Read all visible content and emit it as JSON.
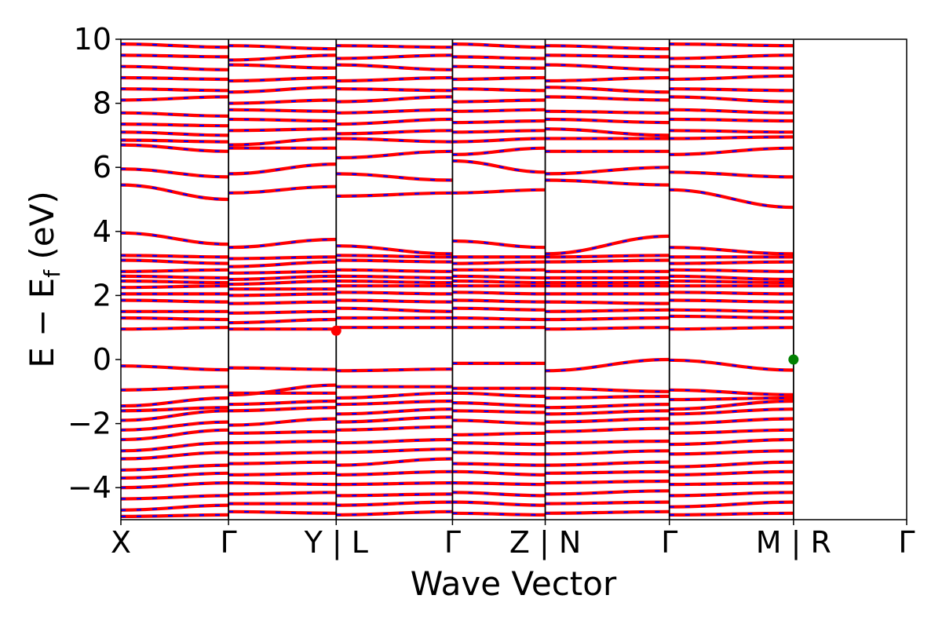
{
  "chart_data": {
    "type": "line",
    "xlabel": "Wave Vector",
    "ylabel": "E − E_f (eV)",
    "ylabel_parts": {
      "main": "E  −  E",
      "sub": "f",
      "unit": " (eV)"
    },
    "ylim": [
      -5,
      10
    ],
    "yticks": [
      -4,
      -2,
      0,
      2,
      4,
      6,
      8,
      10
    ],
    "ytick_labels": [
      "−4",
      "−2",
      "0",
      "2",
      "4",
      "6",
      "8",
      "10"
    ],
    "segments": [
      {
        "from": "X",
        "to": "Γ",
        "k_start": 0.0,
        "k_end": 0.137
      },
      {
        "from": "Γ",
        "to": "Y",
        "k_start": 0.137,
        "k_end": 0.274
      },
      {
        "from": "L",
        "to": "Γ",
        "k_start": 0.274,
        "k_end": 0.422
      },
      {
        "from": "Γ",
        "to": "Z",
        "k_start": 0.422,
        "k_end": 0.54
      },
      {
        "from": "N",
        "to": "Γ",
        "k_start": 0.54,
        "k_end": 0.698
      },
      {
        "from": "Γ",
        "to": "M",
        "k_start": 0.698,
        "k_end": 0.856
      },
      {
        "from": "R",
        "to": "Γ",
        "k_start": 0.856,
        "k_end": 1.0
      }
    ],
    "high_symmetry_points": [
      {
        "k": 0.0,
        "label": "X"
      },
      {
        "k": 0.137,
        "label": "Γ"
      },
      {
        "k": 0.274,
        "label": "Y | L"
      },
      {
        "k": 0.422,
        "label": "Γ"
      },
      {
        "k": 0.54,
        "label": "Z | N"
      },
      {
        "k": 0.698,
        "label": "Γ"
      },
      {
        "k": 0.856,
        "label": "M | R"
      },
      {
        "k": 1.0,
        "label": "Γ"
      }
    ],
    "series": [
      {
        "color": "#ff0000",
        "style": "solid"
      },
      {
        "color": "#0000ff",
        "style": "dashed"
      }
    ],
    "band_edges": {
      "conduction_band_minimum": {
        "k": 0.274,
        "energy": 0.9,
        "color": "#ff0000"
      },
      "valence_band_maximum": {
        "k": 0.856,
        "energy": 0.0,
        "color": "#008000"
      }
    },
    "bands": [
      {
        "group": "valence",
        "energies": [
          -0.2,
          -0.32,
          -0.26,
          -0.31,
          -0.35,
          -0.3,
          -0.12,
          -0.12,
          -0.35,
          0.0,
          -0.02,
          -0.33
        ]
      },
      {
        "group": "valence",
        "energies": [
          -0.95,
          -0.85,
          -1.1,
          -0.8,
          -0.85,
          -0.85,
          -0.9,
          -0.9,
          -0.9,
          -1.0,
          -0.95,
          -1.1
        ]
      },
      {
        "group": "valence",
        "energies": [
          -1.45,
          -1.2,
          -1.05,
          -1.05,
          -1.2,
          -1.05,
          -1.05,
          -1.15,
          -1.2,
          -1.15,
          -1.25,
          -1.2
        ]
      },
      {
        "group": "valence",
        "energies": [
          -1.6,
          -1.5,
          -1.4,
          -1.3,
          -1.4,
          -1.3,
          -1.35,
          -1.45,
          -1.5,
          -1.4,
          -1.55,
          -1.3
        ]
      },
      {
        "group": "valence",
        "energies": [
          -1.9,
          -1.6,
          -1.6,
          -1.5,
          -1.7,
          -1.55,
          -1.6,
          -1.65,
          -1.7,
          -1.6,
          -1.7,
          -1.55
        ]
      },
      {
        "group": "valence",
        "energies": [
          -2.2,
          -1.95,
          -2.05,
          -1.85,
          -1.95,
          -1.8,
          -1.9,
          -2.0,
          -1.95,
          -1.85,
          -2.0,
          -1.85
        ]
      },
      {
        "group": "valence",
        "energies": [
          -2.5,
          -2.2,
          -2.3,
          -2.25,
          -2.2,
          -2.1,
          -2.35,
          -2.3,
          -2.25,
          -2.15,
          -2.3,
          -2.2
        ]
      },
      {
        "group": "valence",
        "energies": [
          -2.85,
          -2.6,
          -2.6,
          -2.55,
          -2.6,
          -2.5,
          -2.6,
          -2.65,
          -2.6,
          -2.55,
          -2.65,
          -2.5
        ]
      },
      {
        "group": "valence",
        "energies": [
          -3.1,
          -2.9,
          -2.95,
          -2.9,
          -2.9,
          -2.8,
          -2.9,
          -2.95,
          -2.95,
          -2.85,
          -2.95,
          -2.85
        ]
      },
      {
        "group": "valence",
        "energies": [
          -3.45,
          -3.3,
          -3.25,
          -3.2,
          -3.3,
          -3.1,
          -3.25,
          -3.3,
          -3.3,
          -3.2,
          -3.35,
          -3.2
        ]
      },
      {
        "group": "valence",
        "energies": [
          -3.7,
          -3.55,
          -3.6,
          -3.55,
          -3.6,
          -3.5,
          -3.5,
          -3.6,
          -3.55,
          -3.5,
          -3.6,
          -3.5
        ]
      },
      {
        "group": "valence",
        "energies": [
          -4.0,
          -3.85,
          -3.85,
          -3.9,
          -3.9,
          -3.85,
          -3.85,
          -3.9,
          -3.85,
          -3.8,
          -3.9,
          -3.85
        ]
      },
      {
        "group": "valence",
        "energies": [
          -4.35,
          -4.25,
          -4.2,
          -4.15,
          -4.25,
          -4.2,
          -4.15,
          -4.25,
          -4.2,
          -4.1,
          -4.25,
          -4.15
        ]
      },
      {
        "group": "valence",
        "energies": [
          -4.7,
          -4.55,
          -4.5,
          -4.5,
          -4.55,
          -4.45,
          -4.45,
          -4.55,
          -4.5,
          -4.45,
          -4.6,
          -4.45
        ]
      },
      {
        "group": "valence",
        "energies": [
          -4.9,
          -4.85,
          -4.75,
          -4.8,
          -4.85,
          -4.75,
          -4.8,
          -4.85,
          -4.8,
          -4.75,
          -4.85,
          -4.8
        ]
      },
      {
        "group": "conduction",
        "energies": [
          0.95,
          1.0,
          0.95,
          0.95,
          1.0,
          1.0,
          1.0,
          1.0,
          0.95,
          1.0,
          0.95,
          1.0
        ]
      },
      {
        "group": "conduction",
        "energies": [
          1.3,
          1.25,
          1.15,
          1.25,
          1.3,
          1.3,
          1.3,
          1.25,
          1.25,
          1.3,
          1.35,
          1.3
        ]
      },
      {
        "group": "conduction",
        "energies": [
          1.5,
          1.5,
          1.45,
          1.5,
          1.6,
          1.5,
          1.6,
          1.55,
          1.5,
          1.55,
          1.55,
          1.5
        ]
      },
      {
        "group": "conduction",
        "energies": [
          1.85,
          1.8,
          1.75,
          1.8,
          1.85,
          1.8,
          1.85,
          1.8,
          1.8,
          1.75,
          1.85,
          1.8
        ]
      },
      {
        "group": "conduction",
        "energies": [
          2.05,
          2.05,
          2.0,
          2.05,
          2.1,
          2.05,
          2.1,
          2.05,
          2.05,
          2.05,
          2.1,
          2.05
        ]
      },
      {
        "group": "conduction",
        "energies": [
          2.25,
          2.3,
          2.2,
          2.2,
          2.3,
          2.3,
          2.3,
          2.3,
          2.3,
          2.3,
          2.3,
          2.3
        ]
      },
      {
        "group": "conduction",
        "energies": [
          2.45,
          2.4,
          2.35,
          2.45,
          2.45,
          2.4,
          2.45,
          2.4,
          2.4,
          2.4,
          2.45,
          2.4
        ]
      },
      {
        "group": "conduction",
        "energies": [
          2.6,
          2.55,
          2.5,
          2.6,
          2.6,
          2.55,
          2.6,
          2.55,
          2.55,
          2.55,
          2.6,
          2.5
        ]
      },
      {
        "group": "conduction",
        "energies": [
          2.75,
          2.8,
          2.7,
          2.75,
          2.8,
          2.75,
          2.8,
          2.8,
          2.75,
          2.75,
          2.8,
          2.75
        ]
      },
      {
        "group": "conduction",
        "energies": [
          3.1,
          3.0,
          2.9,
          3.05,
          3.1,
          3.05,
          3.0,
          3.05,
          3.05,
          3.1,
          3.0,
          3.05
        ]
      },
      {
        "group": "conduction",
        "energies": [
          3.25,
          3.2,
          3.15,
          3.2,
          3.25,
          3.2,
          3.2,
          3.2,
          3.2,
          3.25,
          3.2,
          3.2
        ]
      },
      {
        "group": "conduction",
        "energies": [
          3.95,
          3.6,
          3.5,
          3.75,
          3.55,
          3.3,
          3.7,
          3.5,
          3.3,
          3.85,
          3.5,
          3.3
        ]
      },
      {
        "group": "conduction",
        "energies": [
          5.45,
          5.0,
          5.2,
          5.4,
          5.1,
          5.2,
          5.2,
          5.3,
          5.6,
          5.45,
          5.3,
          4.75
        ]
      },
      {
        "group": "conduction",
        "energies": [
          5.95,
          5.7,
          5.8,
          6.1,
          5.8,
          5.6,
          6.2,
          5.85,
          5.8,
          6.0,
          5.85,
          5.7
        ]
      },
      {
        "group": "conduction",
        "energies": [
          6.7,
          6.5,
          6.6,
          6.6,
          6.3,
          6.5,
          6.4,
          6.6,
          6.5,
          6.5,
          6.4,
          6.6
        ]
      },
      {
        "group": "conduction",
        "energies": [
          6.85,
          6.8,
          6.7,
          6.9,
          6.9,
          6.8,
          6.8,
          6.9,
          6.9,
          6.9,
          6.9,
          6.95
        ]
      },
      {
        "group": "conduction",
        "energies": [
          7.1,
          7.0,
          7.15,
          7.2,
          7.05,
          7.15,
          7.1,
          7.15,
          7.2,
          7.0,
          7.15,
          7.1
        ]
      },
      {
        "group": "conduction",
        "energies": [
          7.35,
          7.3,
          7.5,
          7.45,
          7.35,
          7.5,
          7.4,
          7.45,
          7.5,
          7.4,
          7.5,
          7.45
        ]
      },
      {
        "group": "conduction",
        "energies": [
          7.7,
          7.6,
          7.8,
          7.75,
          7.7,
          7.8,
          7.75,
          7.8,
          7.75,
          7.7,
          7.8,
          7.7
        ]
      },
      {
        "group": "conduction",
        "energies": [
          8.1,
          8.2,
          8.0,
          8.1,
          8.05,
          8.2,
          8.05,
          8.1,
          8.2,
          8.1,
          8.2,
          8.05
        ]
      },
      {
        "group": "conduction",
        "energies": [
          8.45,
          8.4,
          8.35,
          8.5,
          8.45,
          8.4,
          8.45,
          8.4,
          8.5,
          8.35,
          8.45,
          8.4
        ]
      },
      {
        "group": "conduction",
        "energies": [
          8.8,
          8.75,
          8.7,
          8.8,
          8.7,
          8.8,
          8.75,
          8.8,
          8.7,
          8.8,
          8.75,
          8.85
        ]
      },
      {
        "group": "conduction",
        "energies": [
          9.15,
          9.05,
          9.2,
          9.1,
          9.2,
          9.05,
          9.15,
          9.1,
          9.2,
          9.05,
          9.15,
          9.1
        ]
      },
      {
        "group": "conduction",
        "energies": [
          9.5,
          9.45,
          9.35,
          9.5,
          9.4,
          9.5,
          9.45,
          9.4,
          9.5,
          9.45,
          9.4,
          9.5
        ]
      },
      {
        "group": "conduction",
        "energies": [
          9.85,
          9.75,
          9.8,
          9.7,
          9.8,
          9.75,
          9.85,
          9.75,
          9.8,
          9.7,
          9.85,
          9.8
        ]
      }
    ]
  }
}
